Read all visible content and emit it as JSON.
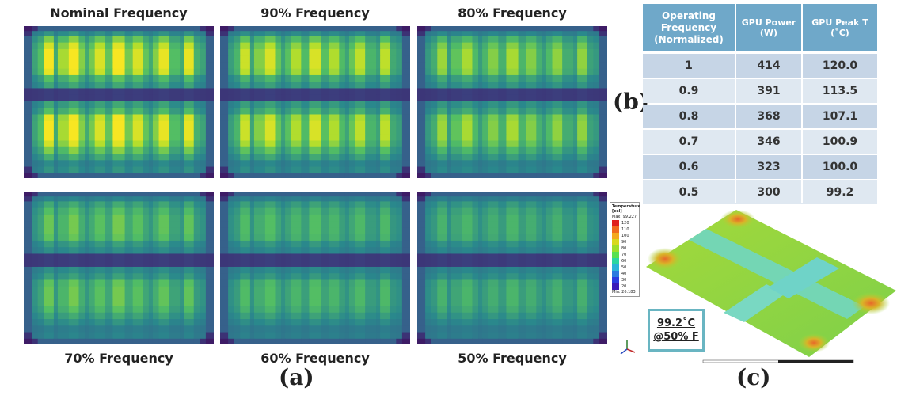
{
  "heatmaps": [
    {
      "label": "Nominal Frequency",
      "scale": 1.0
    },
    {
      "label": "90% Frequency",
      "scale": 0.85
    },
    {
      "label": "80% Frequency",
      "scale": 0.7
    },
    {
      "label": "70% Frequency",
      "scale": 0.55
    },
    {
      "label": "60% Frequency",
      "scale": 0.45
    },
    {
      "label": "50% Frequency",
      "scale": 0.38
    }
  ],
  "panel_labels": {
    "a": "(a)",
    "b": "(b)",
    "c": "(c)"
  },
  "table": {
    "headers": [
      "Operating Frequency (Normalized)",
      "GPU Power (W)",
      "GPU Peak T (˚C)"
    ],
    "rows": [
      [
        "1",
        "414",
        "120.0"
      ],
      [
        "0.9",
        "391",
        "113.5"
      ],
      [
        "0.8",
        "368",
        "107.1"
      ],
      [
        "0.7",
        "346",
        "100.9"
      ],
      [
        "0.6",
        "323",
        "100.0"
      ],
      [
        "0.5",
        "300",
        "99.2"
      ]
    ]
  },
  "legend": {
    "title": "Temperature [cel]",
    "max": "Max: 99.227",
    "min": "Min: 26.183",
    "ticks": [
      "120",
      "110",
      "100",
      "90",
      "80",
      "70",
      "60",
      "50",
      "40",
      "30",
      "20"
    ]
  },
  "annotation": {
    "temp": "99.2˚C",
    "freq": "@50% F"
  },
  "colors": {
    "table_header": "#6fa8c9",
    "row_light": "#dfe8f1",
    "row_dark": "#c6d5e6",
    "note_border": "#69b5c2"
  }
}
